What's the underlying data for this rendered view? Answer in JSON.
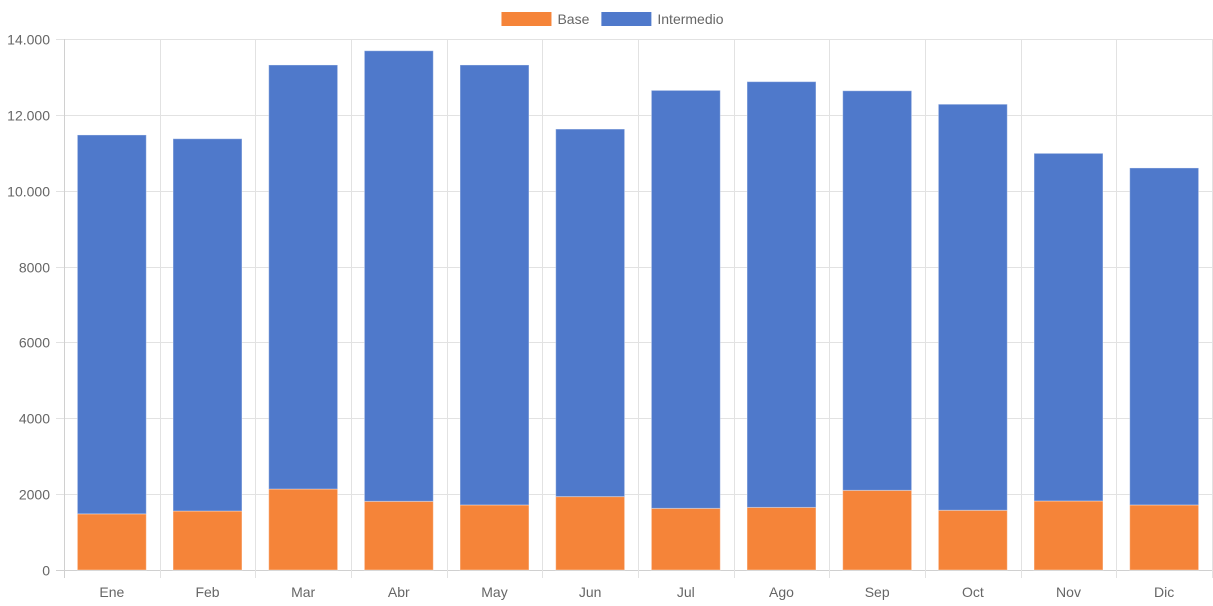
{
  "chart_data": {
    "type": "bar",
    "stacked": true,
    "title": "",
    "xlabel": "",
    "ylabel": "",
    "categories": [
      "Ene",
      "Feb",
      "Mar",
      "Abr",
      "May",
      "Jun",
      "Jul",
      "Ago",
      "Sep",
      "Oct",
      "Nov",
      "Dic"
    ],
    "series": [
      {
        "name": "Base",
        "color": "#f58439",
        "values": [
          1480,
          1555,
          2135,
          1810,
          1715,
          1935,
          1625,
          1650,
          2100,
          1575,
          1820,
          1715
        ]
      },
      {
        "name": "Intermedio",
        "color": "#4f79cb",
        "values": [
          9990,
          9815,
          11180,
          11880,
          11600,
          9690,
          11020,
          11225,
          10535,
          10705,
          9165,
          8885
        ]
      }
    ],
    "ylim": [
      0,
      14000
    ],
    "yticks": [
      0,
      2000,
      4000,
      6000,
      8000,
      10000,
      12000,
      14000
    ],
    "ytick_labels": [
      "0",
      "2000",
      "4000",
      "6000",
      "8000",
      "10.000",
      "12.000",
      "14.000"
    ],
    "grid": true,
    "legend_position": "top-center"
  }
}
